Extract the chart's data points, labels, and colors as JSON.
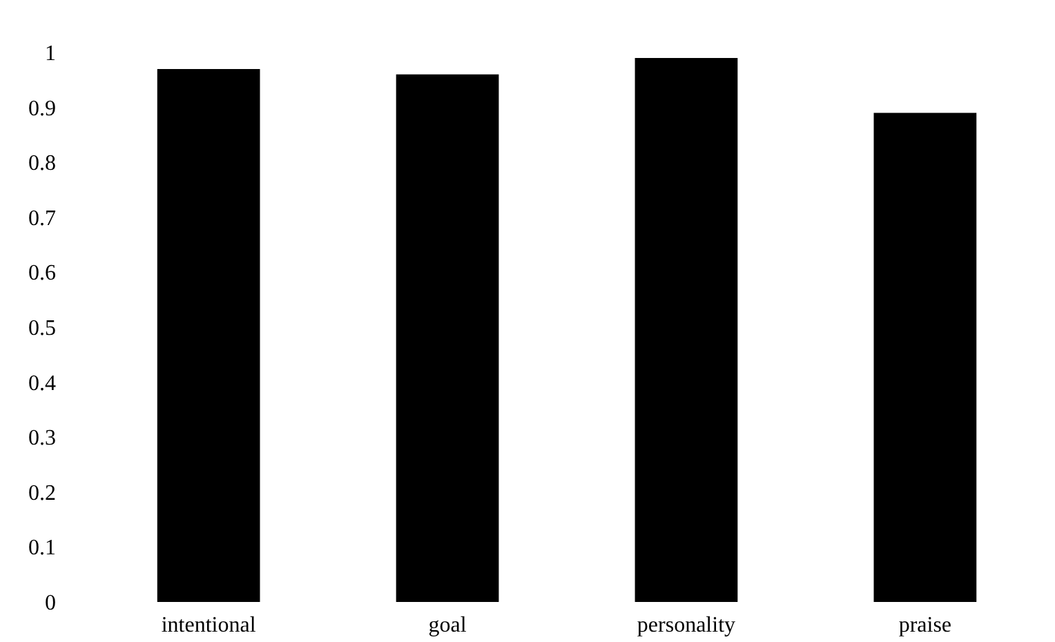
{
  "chart_data": {
    "type": "bar",
    "categories": [
      "intentional",
      "goal",
      "personality",
      "praise"
    ],
    "values": [
      0.97,
      0.96,
      0.99,
      0.89
    ],
    "color": "#000000",
    "ylim": [
      0,
      1
    ],
    "yticks": [
      0,
      0.1,
      0.2,
      0.3,
      0.4,
      0.5,
      0.6,
      0.7,
      0.8,
      0.9,
      1
    ],
    "grid": false
  }
}
